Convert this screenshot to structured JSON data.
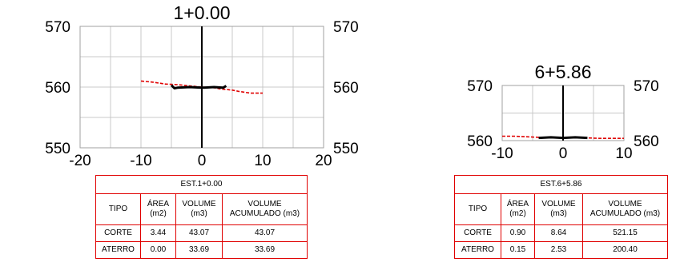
{
  "chart_data": [
    {
      "type": "line",
      "title": "1+0.00",
      "xlim": [
        -20,
        20
      ],
      "ylim": [
        550,
        570
      ],
      "x_ticks": [
        "-20",
        "-10",
        "0",
        "10",
        "20"
      ],
      "y_ticks_left": [
        "570",
        "560",
        "550"
      ],
      "y_ticks_right": [
        "570",
        "560",
        "550"
      ],
      "grid": true,
      "series": [
        {
          "color": "#e00000",
          "x": [
            -10,
            -8,
            -6,
            -4,
            -2,
            0,
            2,
            3,
            4,
            5,
            6,
            8,
            10
          ],
          "y": [
            561.0,
            560.8,
            560.5,
            560.4,
            560.2,
            560.0,
            559.9,
            559.7,
            559.6,
            559.5,
            559.3,
            559.0,
            559.0
          ]
        },
        {
          "color": "#000000",
          "x": [
            -5,
            -4.5,
            -4,
            -2,
            0,
            2,
            3.5,
            4
          ],
          "y": [
            560.3,
            559.8,
            559.9,
            560.0,
            559.9,
            560.0,
            559.9,
            560.2
          ]
        }
      ],
      "table": {
        "header": "EST.1+0.00",
        "columns": [
          "TIPO",
          "ÁREA (m2)",
          "VOLUME (m3)",
          "VOLUME ACUMULADO (m3)"
        ],
        "rows": [
          [
            "CORTE",
            "3.44",
            "43.07",
            "43.07"
          ],
          [
            "ATERRO",
            "0.00",
            "33.69",
            "33.69"
          ]
        ]
      }
    },
    {
      "type": "line",
      "title": "6+5.86",
      "xlim": [
        -10,
        10
      ],
      "ylim": [
        560,
        570
      ],
      "x_ticks": [
        "-10",
        "0",
        "10"
      ],
      "y_ticks_left": [
        "570",
        "560"
      ],
      "y_ticks_right": [
        "570",
        "560"
      ],
      "grid": true,
      "series": [
        {
          "color": "#e00000",
          "x": [
            -10,
            -8,
            -6,
            -4,
            -2,
            0,
            2,
            4,
            6,
            8,
            10
          ],
          "y": [
            560.8,
            560.8,
            560.7,
            560.6,
            560.6,
            560.5,
            560.5,
            560.5,
            560.4,
            560.4,
            560.4
          ]
        },
        {
          "color": "#000000",
          "x": [
            -4,
            -2,
            0,
            2,
            4
          ],
          "y": [
            560.5,
            560.6,
            560.5,
            560.6,
            560.5
          ]
        }
      ],
      "table": {
        "header": "EST.6+5.86",
        "columns": [
          "TIPO",
          "ÁREA (m2)",
          "VOLUME (m3)",
          "VOLUME ACUMULADO (m3)"
        ],
        "rows": [
          [
            "CORTE",
            "0.90",
            "8.64",
            "521.15"
          ],
          [
            "ATERRO",
            "0.15",
            "2.53",
            "200.40"
          ]
        ]
      }
    }
  ]
}
